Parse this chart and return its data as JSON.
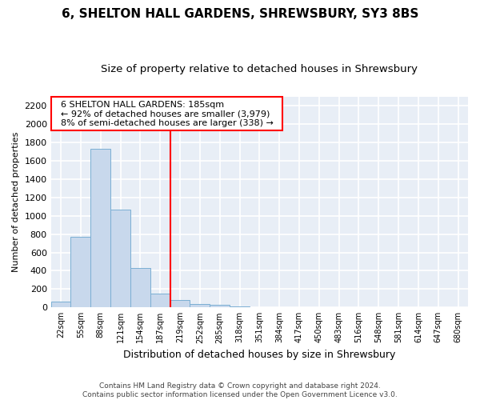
{
  "title1": "6, SHELTON HALL GARDENS, SHREWSBURY, SY3 8BS",
  "title2": "Size of property relative to detached houses in Shrewsbury",
  "xlabel": "Distribution of detached houses by size in Shrewsbury",
  "ylabel": "Number of detached properties",
  "bar_color": "#c8d8ec",
  "bar_edge_color": "#7bafd4",
  "categories": [
    "22sqm",
    "55sqm",
    "88sqm",
    "121sqm",
    "154sqm",
    "187sqm",
    "219sqm",
    "252sqm",
    "285sqm",
    "318sqm",
    "351sqm",
    "384sqm",
    "417sqm",
    "450sqm",
    "483sqm",
    "516sqm",
    "548sqm",
    "581sqm",
    "614sqm",
    "647sqm",
    "680sqm"
  ],
  "values": [
    60,
    770,
    1730,
    1065,
    430,
    150,
    85,
    40,
    30,
    15,
    0,
    0,
    0,
    0,
    0,
    0,
    0,
    0,
    0,
    0,
    0
  ],
  "property_label": "6 SHELTON HALL GARDENS: 185sqm",
  "pct_smaller": "← 92% of detached houses are smaller (3,979)",
  "pct_larger": "8% of semi-detached houses are larger (338) →",
  "vline_x": 5.5,
  "footer1": "Contains HM Land Registry data © Crown copyright and database right 2024.",
  "footer2": "Contains public sector information licensed under the Open Government Licence v3.0.",
  "ylim": [
    0,
    2300
  ],
  "yticks": [
    0,
    200,
    400,
    600,
    800,
    1000,
    1200,
    1400,
    1600,
    1800,
    2000,
    2200
  ],
  "fig_bg_color": "#ffffff",
  "plot_bg_color": "#e8eef6",
  "grid_color": "#ffffff",
  "title1_fontsize": 11,
  "title2_fontsize": 9.5
}
